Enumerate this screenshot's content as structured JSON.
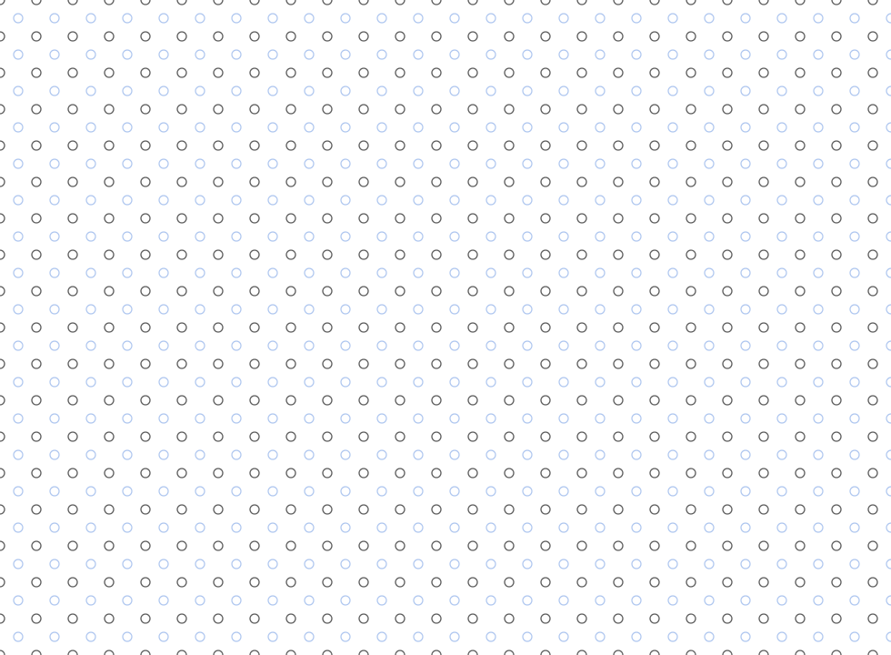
{
  "background_color": "#ffffff",
  "pattern": {
    "type": "staggered-ring-grid",
    "ring_colors": {
      "dark": "#5c5c5c",
      "light": "#aec6ef"
    }
  }
}
